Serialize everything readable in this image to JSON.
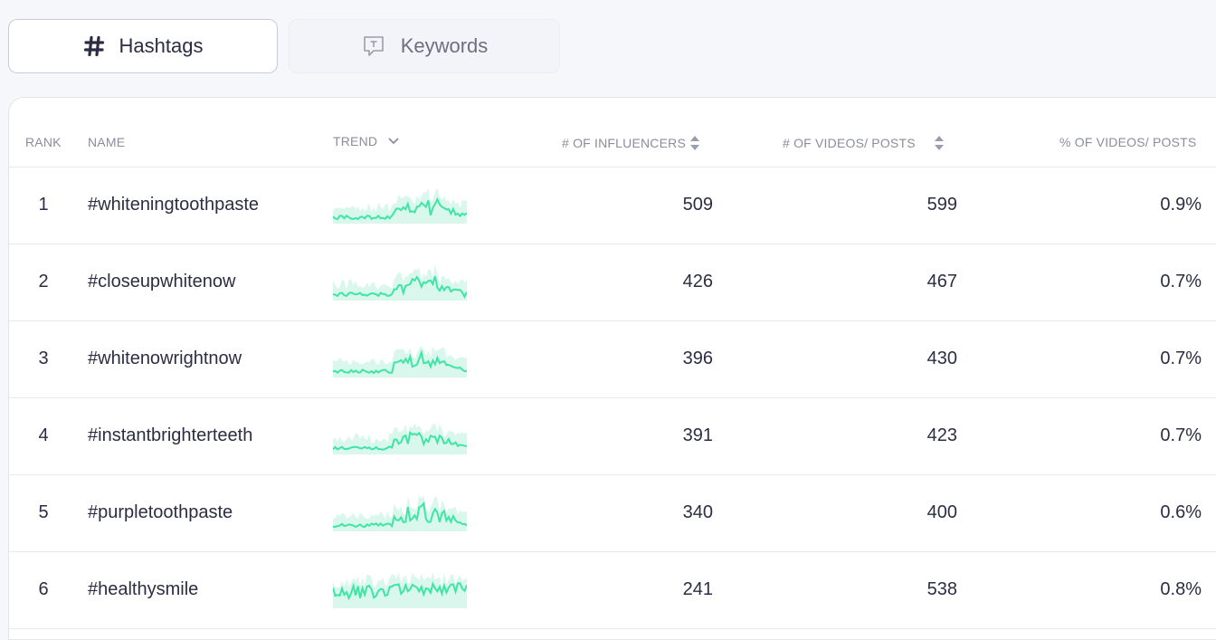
{
  "tabs": [
    {
      "label": "Hashtags",
      "icon": "hash-icon",
      "active": true
    },
    {
      "label": "Keywords",
      "icon": "keyword-chat-icon",
      "active": false
    }
  ],
  "table": {
    "columns": {
      "rank": "RANK",
      "name": "NAME",
      "trend": "TREND",
      "influencers": "# OF INFLUENCERS",
      "videos": "# OF VIDEOS/ POSTS",
      "percent": "% OF VIDEOS/ POSTS"
    },
    "rows": [
      {
        "rank": "1",
        "name": "#whiteningtoothpaste",
        "influencers": "509",
        "videos": "599",
        "percent": "0.9%"
      },
      {
        "rank": "2",
        "name": "#closeupwhitenow",
        "influencers": "426",
        "videos": "467",
        "percent": "0.7%"
      },
      {
        "rank": "3",
        "name": "#whitenowrightnow",
        "influencers": "396",
        "videos": "430",
        "percent": "0.7%"
      },
      {
        "rank": "4",
        "name": "#instantbrighterteeth",
        "influencers": "391",
        "videos": "423",
        "percent": "0.7%"
      },
      {
        "rank": "5",
        "name": "#purpletoothpaste",
        "influencers": "340",
        "videos": "400",
        "percent": "0.6%"
      },
      {
        "rank": "6",
        "name": "#healthysmile",
        "influencers": "241",
        "videos": "538",
        "percent": "0.8%"
      }
    ]
  },
  "colors": {
    "trend_line": "#3ee6a5",
    "trend_fill": "#d9f7ec"
  }
}
